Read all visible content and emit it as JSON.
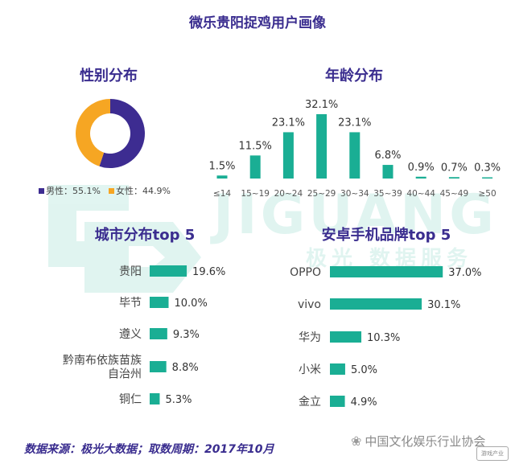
{
  "title": "微乐贵阳捉鸡用户画像",
  "footer": "数据来源：极光大数据；取数周期：2017年10月",
  "wechat_label": "中国文化娱乐行业协会",
  "game_logo_text": "游戏产业",
  "watermark": {
    "brand": "JIGUANG",
    "slogan": "极光 数据服务"
  },
  "colors": {
    "teal": "#1aae94",
    "purple": "#3d2c91",
    "orange": "#f6a623",
    "title": "#3a2d8f"
  },
  "chart_data": [
    {
      "type": "pie",
      "title": "性别分布",
      "categories": [
        "男性",
        "女性"
      ],
      "values": [
        55.1,
        44.9
      ],
      "legend_labels": [
        "男性：55.1%",
        "女性：44.9%"
      ],
      "colors": [
        "#3d2c91",
        "#f6a623"
      ],
      "legend": "bottom"
    },
    {
      "type": "bar",
      "title": "年龄分布",
      "categories": [
        "≤14",
        "15~19",
        "20~24",
        "25~29",
        "30~34",
        "35~39",
        "40~44",
        "45~49",
        "≥50"
      ],
      "values": [
        1.5,
        11.5,
        23.1,
        32.1,
        23.1,
        6.8,
        0.9,
        0.7,
        0.3
      ],
      "labels": [
        "1.5%",
        "11.5%",
        "23.1%",
        "32.1%",
        "23.1%",
        "6.8%",
        "0.9%",
        "0.7%",
        "0.3%"
      ],
      "ylim": [
        0,
        32.1
      ]
    },
    {
      "type": "bar",
      "orientation": "horizontal",
      "title": "城市分布top 5",
      "categories": [
        "贵阳",
        "毕节",
        "遵义",
        "黔南布依族苗族自治州",
        "铜仁"
      ],
      "category_lines": [
        [
          "贵阳"
        ],
        [
          "毕节"
        ],
        [
          "遵义"
        ],
        [
          "黔南布依族苗族",
          "自治州"
        ],
        [
          "铜仁"
        ]
      ],
      "values": [
        19.6,
        10.0,
        9.3,
        8.8,
        5.3
      ],
      "labels": [
        "19.6%",
        "10.0%",
        "9.3%",
        "8.8%",
        "5.3%"
      ]
    },
    {
      "type": "bar",
      "orientation": "horizontal",
      "title": "安卓手机品牌top 5",
      "categories": [
        "OPPO",
        "vivo",
        "华为",
        "小米",
        "金立"
      ],
      "values": [
        37.0,
        30.1,
        10.3,
        5.0,
        4.9
      ],
      "labels": [
        "37.0%",
        "30.1%",
        "10.3%",
        "5.0%",
        "4.9%"
      ]
    }
  ]
}
